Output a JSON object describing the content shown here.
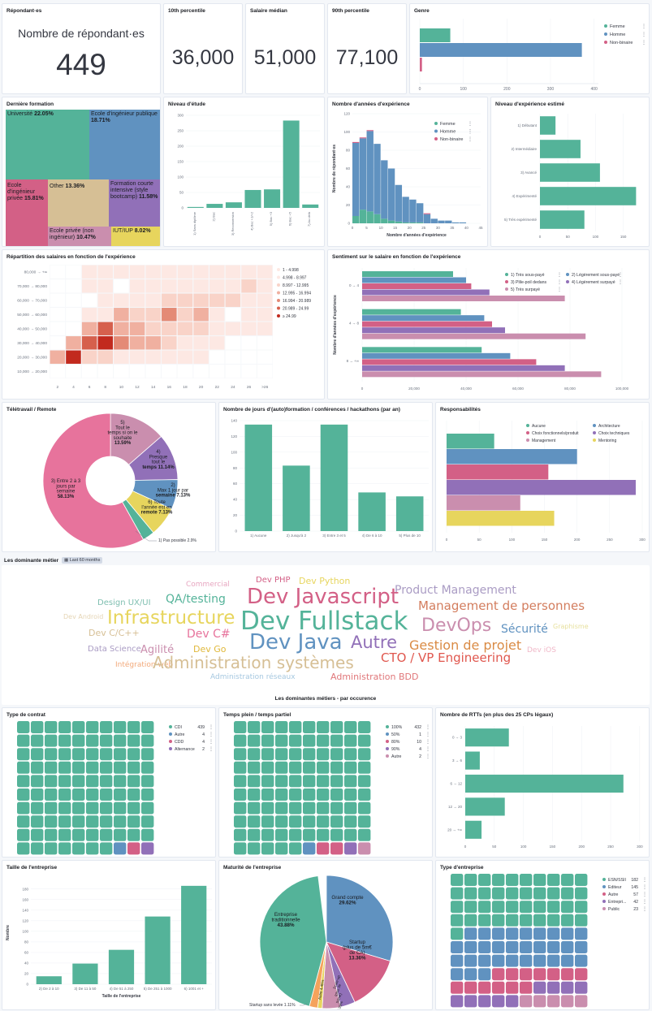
{
  "metric_cards": [
    {
      "title": "Répondant·es",
      "label": "Nombre de répondant·es",
      "value": "449"
    },
    {
      "title": "10th percentile",
      "value": "36,000"
    },
    {
      "title": "Salaire médian",
      "value": "51,000"
    },
    {
      "title": "90th percentile",
      "value": "77,100"
    }
  ],
  "colors": {
    "femme": "#54b399",
    "homme": "#6092c0",
    "nonbinaire": "#d36086",
    "purple": "#9170b8",
    "pink": "#ca8eae",
    "yellow": "#e7d55d",
    "tan": "#d6bf95",
    "orange": "#da8b45",
    "lightblue": "#aa9cc4"
  },
  "chart_data": [
    {
      "id": "genre",
      "type": "bar",
      "orientation": "horizontal",
      "title": "Genre",
      "series": [
        {
          "name": "Femme",
          "values": [
            70
          ]
        },
        {
          "name": "Homme",
          "values": [
            372
          ]
        },
        {
          "name": "Non-binaire",
          "values": [
            5
          ]
        }
      ],
      "xticks": [
        "0",
        "100",
        "200",
        "300",
        "400"
      ],
      "xlim": [
        0,
        410
      ],
      "legend": [
        "Femme",
        "Homme",
        "Non-binaire"
      ]
    },
    {
      "id": "formation",
      "type": "treemap",
      "title": "Dernière formation",
      "items": [
        {
          "label": "Université",
          "pct": "22.05%"
        },
        {
          "label": "Ecole d'ingénieur publique",
          "pct": "18.71%"
        },
        {
          "label": "Ecole d'ingénieur privée",
          "pct": "15.81%"
        },
        {
          "label": "Other",
          "pct": "13.36%"
        },
        {
          "label": "Formation courte intensive (style bootcamp)",
          "pct": "11.58%"
        },
        {
          "label": "Ecole privée (non ingénieur)",
          "pct": "10.47%"
        },
        {
          "label": "IUT/IUP",
          "pct": "8.02%"
        }
      ]
    },
    {
      "id": "niveau",
      "type": "bar",
      "title": "Niveau d'étude",
      "categories": [
        "1) Sans diplôme",
        "2) Bac",
        "3) Reconversion",
        "4) Bac +1/+2",
        "5) Bac +3",
        "6) Bac +5",
        "7) Au delà"
      ],
      "values": [
        3,
        13,
        18,
        58,
        60,
        283,
        11
      ],
      "yticks": [
        "0",
        "50",
        "100",
        "150",
        "200",
        "250",
        "300"
      ],
      "ylim": [
        0,
        300
      ]
    },
    {
      "id": "experience",
      "type": "histogram",
      "title": "Nombre d'années d'expérience",
      "xlabel": "Nombre d'années d'expérience",
      "ylabel": "Nombre de répondant·es",
      "x": [
        0,
        2.5,
        5,
        7.5,
        10,
        12.5,
        15,
        17.5,
        20,
        22.5,
        25,
        27.5,
        30,
        32.5,
        35,
        37.5,
        40
      ],
      "series": [
        {
          "name": "Femme",
          "values": [
            8,
            15,
            13,
            10,
            5,
            3,
            2,
            1,
            1,
            1,
            0,
            0,
            0,
            0,
            0,
            0
          ]
        },
        {
          "name": "Homme",
          "values": [
            80,
            78,
            88,
            77,
            64,
            57,
            40,
            28,
            25,
            21,
            10,
            5,
            3,
            3,
            1,
            1
          ]
        },
        {
          "name": "Non-binaire",
          "values": [
            1,
            1,
            1,
            0,
            0,
            0,
            0,
            0,
            0,
            0,
            1,
            0,
            0,
            0,
            0,
            0
          ]
        }
      ],
      "xticks": [
        "0",
        "5",
        "10",
        "15",
        "20",
        "25",
        "30",
        "35",
        "40",
        "45"
      ],
      "yticks": [
        "0",
        "20",
        "40",
        "60",
        "80",
        "100",
        "120"
      ],
      "ylim": [
        0,
        120
      ],
      "xlim": [
        0,
        45
      ]
    },
    {
      "id": "niveau_exp",
      "type": "bar",
      "orientation": "horizontal",
      "title": "Niveau d'expérience estimé",
      "categories": [
        "1) Débutant",
        "2) Intermédiaire",
        "3) Avancé",
        "4) Expérimenté",
        "5) Très expérimenté"
      ],
      "values": [
        28,
        73,
        108,
        173,
        80
      ],
      "xticks": [
        "0",
        "50",
        "100",
        "150"
      ],
      "xlim": [
        0,
        190
      ]
    },
    {
      "id": "heatmap",
      "type": "heatmap",
      "title": "Répartition des salaires en fonction de l'expérience",
      "xticks": [
        "2",
        "4",
        "6",
        "8",
        "10",
        "12",
        "14",
        "16",
        "18",
        "20",
        "22",
        "24",
        "26",
        ">26"
      ],
      "yticks": [
        "80,000 → +∞",
        "70,000 → 80,000",
        "60,000 → 70,000",
        "50,000 → 60,000",
        "40,000 → 50,000",
        "30,000 → 40,000",
        "20,000 → 30,000",
        "10,000 → 20,000"
      ],
      "legend": [
        "1 - 4.998",
        "4.998 - 8.997",
        "8.997 - 12.995",
        "12.995 - 16.994",
        "16.994 - 20.989",
        "20.989 - 24.99",
        "≥ 24.99"
      ],
      "rows": [
        [
          0,
          0,
          1,
          1,
          1,
          1,
          1,
          1,
          1,
          1,
          1,
          1,
          1,
          1
        ],
        [
          0,
          0,
          1,
          1,
          0,
          1,
          1,
          1,
          1,
          1,
          1,
          1,
          2,
          1
        ],
        [
          0,
          0,
          0,
          1,
          1,
          1,
          1,
          2,
          2,
          2,
          2,
          2,
          1,
          1
        ],
        [
          0,
          0,
          1,
          1,
          3,
          2,
          2,
          4,
          2,
          3,
          1,
          0,
          1,
          1
        ],
        [
          0,
          0,
          3,
          5,
          3,
          3,
          2,
          2,
          2,
          2,
          1,
          1,
          1,
          1
        ],
        [
          0,
          3,
          5,
          6,
          4,
          3,
          3,
          2,
          1,
          1,
          1,
          0,
          0,
          0
        ],
        [
          3,
          6,
          2,
          2,
          1,
          1,
          1,
          1,
          1,
          1,
          0,
          0,
          0,
          0
        ],
        [
          0,
          0,
          0,
          0,
          0,
          0,
          0,
          0,
          0,
          0,
          0,
          0,
          0,
          0
        ]
      ]
    },
    {
      "id": "sentiment",
      "type": "bar",
      "orientation": "horizontal",
      "title": "Sentiment sur le salaire en fonction de l'expérience",
      "ylabel": "Nombre d'années d'expérience",
      "categories": [
        "0 → 4",
        "4 → 8",
        "8 → +∞"
      ],
      "series": [
        {
          "name": "1) Très sous-payé",
          "values": [
            35000,
            38000,
            46000
          ]
        },
        {
          "name": "2) Légèrement sous-payé",
          "values": [
            40000,
            47000,
            57000
          ]
        },
        {
          "name": "3) Plile-poil dedans",
          "values": [
            42000,
            50000,
            67000
          ]
        },
        {
          "name": "4) Légèrement surpayé",
          "values": [
            49000,
            55000,
            78000
          ]
        },
        {
          "name": "5) Très surpayé",
          "values": [
            78000,
            86000,
            92000
          ]
        }
      ],
      "xticks": [
        "0",
        "20,000",
        "40,000",
        "60,000",
        "80,000",
        "100,000"
      ],
      "xlim": [
        0,
        105000
      ]
    },
    {
      "id": "teletravail",
      "type": "pie",
      "title": "Télétravail / Remote",
      "slices": [
        {
          "label": "3) Entre 2 à 3 jours par semaine",
          "pct": 58.13,
          "color": "#e7739c"
        },
        {
          "label": "1) Pas possible",
          "pct": 2.9,
          "color": "#54b399"
        },
        {
          "label": "6) Toute l'année est en remote",
          "pct": 7.13,
          "color": "#e7d55d"
        },
        {
          "label": "2) Max 1 jour par semaine",
          "pct": 7.13,
          "color": "#6092c0"
        },
        {
          "label": "4) Presque tout le temps",
          "pct": 11.14,
          "color": "#9170b8"
        },
        {
          "label": "5) Tout le temps si on le souhaite",
          "pct": 13.59,
          "color": "#ca8eae"
        }
      ]
    },
    {
      "id": "formation_jours",
      "type": "bar",
      "title": "Nombre de jours d'(auto)formation / conférences / hackathons (par an)",
      "categories": [
        "1) Aucune",
        "2) Jusqu'à 2",
        "3) Entre 3 et 5",
        "4) De 6 à 10",
        "5) Plus de 10"
      ],
      "values": [
        135,
        83,
        135,
        49,
        44
      ],
      "yticks": [
        "0",
        "20",
        "40",
        "60",
        "80",
        "100",
        "120",
        "140"
      ],
      "ylim": [
        0,
        140
      ]
    },
    {
      "id": "responsabilites",
      "type": "bar",
      "orientation": "horizontal",
      "title": "Responsabilités",
      "series": [
        {
          "name": "Aucune",
          "values": [
            73
          ]
        },
        {
          "name": "Architecture",
          "values": [
            200
          ]
        },
        {
          "name": "Choix fonctionnels/produit",
          "values": [
            156
          ]
        },
        {
          "name": "Choix techniques",
          "values": [
            290
          ]
        },
        {
          "name": "Management",
          "values": [
            113
          ]
        },
        {
          "name": "Mentoring",
          "values": [
            165
          ]
        }
      ],
      "xticks": [
        "0",
        "50",
        "100",
        "150",
        "200",
        "250",
        "300"
      ],
      "xlim": [
        0,
        300
      ]
    },
    {
      "id": "contrat",
      "type": "waffle",
      "title": "Type de contrat",
      "items": [
        {
          "label": "CDI",
          "value": 439
        },
        {
          "label": "Autre",
          "value": 4
        },
        {
          "label": "CDD",
          "value": 4
        },
        {
          "label": "Alternance",
          "value": 2
        }
      ]
    },
    {
      "id": "temps",
      "type": "waffle",
      "title": "Temps plein / temps partiel",
      "items": [
        {
          "label": "100%",
          "value": 432
        },
        {
          "label": "50%",
          "value": 1
        },
        {
          "label": "80%",
          "value": 10
        },
        {
          "label": "90%",
          "value": 4
        },
        {
          "label": "Autre",
          "value": 2
        }
      ]
    },
    {
      "id": "rtt",
      "type": "bar",
      "orientation": "horizontal",
      "title": "Nombre de RTTs (en plus des 25 CPs légaux)",
      "categories": [
        "0 → 3",
        "3 → 6",
        "6 → 12",
        "12 → 20",
        "20 → +∞"
      ],
      "values": [
        75,
        25,
        272,
        68,
        28
      ],
      "xticks": [
        "0",
        "50",
        "100",
        "150",
        "200",
        "250",
        "300"
      ],
      "xlim": [
        0,
        310
      ]
    },
    {
      "id": "taille",
      "type": "bar",
      "title": "Taille de l'entreprise",
      "xlabel": "Taille de l'entreprise",
      "ylabel": "Nombre",
      "categories": [
        "2) De 2 à 10",
        "3) De 11 à 50",
        "4) De 51 à 250",
        "5) De 251 à 1000",
        "6) 1001 et +"
      ],
      "values": [
        15,
        39,
        65,
        128,
        186
      ],
      "yticks": [
        "0",
        "20",
        "40",
        "60",
        "80",
        "100",
        "120",
        "140",
        "160",
        "180"
      ],
      "ylim": [
        0,
        195
      ]
    },
    {
      "id": "maturite",
      "type": "pie",
      "title": "Maturité de l'entreprise",
      "slices": [
        {
          "label": "Grand compte",
          "pct": 29.62,
          "color": "#6092c0"
        },
        {
          "label": "Startup (plus de 5m€ de CA)",
          "pct": 13.36,
          "color": "#d36086"
        },
        {
          "label": "Scale-up (plus de 50m€)",
          "pct": 3.59,
          "color": "#9170b8"
        },
        {
          "label": "Autre",
          "pct": 4.45,
          "color": "#ca8eae"
        },
        {
          "label": "Startup sans levée",
          "pct": 1.11,
          "color": "#e7d55d"
        },
        {
          "label": "Startup (moins de 5m€)",
          "pct": 2.0,
          "color": "#f5a35c"
        },
        {
          "label": "Entreprise traditionnelle",
          "pct": 43.88,
          "color": "#54b399"
        }
      ]
    },
    {
      "id": "type_entreprise",
      "type": "waffle",
      "title": "Type d'entreprise",
      "items": [
        {
          "label": "ESN/SSII",
          "value": 182
        },
        {
          "label": "Editeur",
          "value": 145
        },
        {
          "label": "Autre",
          "value": 57
        },
        {
          "label": "Entrepri...",
          "value": 42
        },
        {
          "label": "Public",
          "value": 23
        }
      ]
    }
  ],
  "labels": {
    "pie_tele": [
      "5)",
      "Tout le",
      "temps si on le",
      "souhaite",
      "13.59%",
      "4)",
      "Presque",
      "tout le",
      "temps 11.14%",
      "2)",
      "Max 1 jour par",
      "semaine 7.13%",
      "6) Toute",
      "l'année est en",
      "remote 7.13%",
      "3) Entre 2 à 3",
      "jours par",
      "semaine",
      "58.13%",
      "1) Pas possible  2.9%"
    ],
    "pie_mat": [
      "Entreprise",
      "traditionnelle",
      "43.88%",
      "Grand compte",
      "29.62%",
      "Startup",
      "(plus de 5m€",
      "de CA)",
      "13.36%",
      "Autre 4.45%",
      "Scale-up",
      "(plus de",
      "50m€)",
      "3.59%",
      "Startup sans levée  1.11%"
    ],
    "heat_legend_title": ""
  },
  "wordcloud": {
    "title": "Les dominante métier",
    "badge": "Last 60 months",
    "footer": "Les dominantes métiers - par occurence",
    "words": [
      {
        "t": "Commercial",
        "c": "#e7a6c0"
      },
      {
        "t": "Dev PHP",
        "c": "#d36086"
      },
      {
        "t": "Dev Python",
        "c": "#e7d55d"
      },
      {
        "t": "Product Management",
        "c": "#aa9cc4"
      },
      {
        "t": "Design UX/UI",
        "c": "#7fbfb0"
      },
      {
        "t": "QA/testing",
        "c": "#54b399"
      },
      {
        "t": "Dev Javascript",
        "c": "#d36086"
      },
      {
        "t": "Management de personnes",
        "c": "#d37d5e"
      },
      {
        "t": "Dev Android",
        "c": "#e5d5b5"
      },
      {
        "t": "Infrastructure",
        "c": "#e7d55d"
      },
      {
        "t": "Dev Fullstack",
        "c": "#54b399"
      },
      {
        "t": "DevOps",
        "c": "#ca8eae"
      },
      {
        "t": "Sécurité",
        "c": "#6092c0"
      },
      {
        "t": "Graphisme",
        "c": "#e7e09d"
      },
      {
        "t": "Dev C/C++",
        "c": "#d6bf95"
      },
      {
        "t": "Dev C#",
        "c": "#e7739c"
      },
      {
        "t": "Dev Java",
        "c": "#6092c0"
      },
      {
        "t": "Autre",
        "c": "#9170b8"
      },
      {
        "t": "Gestion de projet",
        "c": "#da8b45"
      },
      {
        "t": "Data Science",
        "c": "#aa9cc4"
      },
      {
        "t": "Agilité",
        "c": "#ca8eae"
      },
      {
        "t": "Dev Go",
        "c": "#e0b83a"
      },
      {
        "t": "CTO / VP Engineering",
        "c": "#e0574e"
      },
      {
        "t": "Dev iOS",
        "c": "#f0b8c8"
      },
      {
        "t": "Intégration web",
        "c": "#f2a97a"
      },
      {
        "t": "Administration systèmes",
        "c": "#d6bf95"
      },
      {
        "t": "Administration réseaux",
        "c": "#a6c8e0"
      },
      {
        "t": "Administration BDD",
        "c": "#e0777a"
      }
    ]
  }
}
